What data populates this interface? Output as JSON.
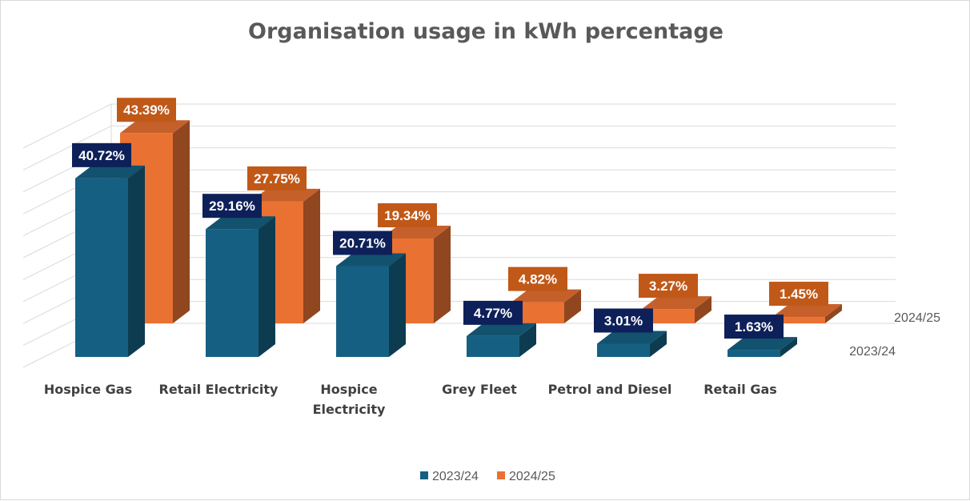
{
  "chart_data": {
    "type": "bar",
    "title": "Organisation usage in kWh percentage",
    "categories": [
      "Hospice Gas",
      "Retail Electricity",
      "Hospice Electricity",
      "Grey Fleet",
      "Petrol and Diesel",
      "Retail Gas"
    ],
    "series": [
      {
        "name": "2023/24",
        "values": [
          40.72,
          29.16,
          20.71,
          4.77,
          3.01,
          1.63
        ],
        "labels": [
          "40.72%",
          "29.16%",
          "20.71%",
          "4.77%",
          "3.01%",
          "1.63%"
        ],
        "color": "#156082",
        "label_bg": "#0e2059"
      },
      {
        "name": "2024/25",
        "values": [
          43.39,
          27.75,
          19.34,
          4.82,
          3.27,
          1.45
        ],
        "labels": [
          "43.39%",
          "27.75%",
          "19.34%",
          "4.82%",
          "3.27%",
          "1.45%"
        ],
        "color": "#e97132",
        "label_bg": "#c05818"
      }
    ],
    "ylim": [
      0,
      50
    ],
    "grid": true,
    "legend": "bottom",
    "xlabel": "",
    "ylabel": ""
  }
}
